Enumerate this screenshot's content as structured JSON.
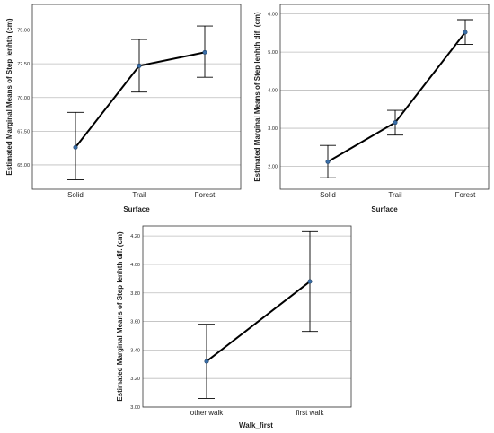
{
  "chart_data": [
    {
      "type": "line",
      "title": "",
      "xlabel": "Surface",
      "ylabel": "Estimated Marginal Means of Step lenhth (cm)",
      "categories": [
        "Solid",
        "Trail",
        "Forest"
      ],
      "yticks": [
        "65.00",
        "67.50",
        "70.00",
        "72.50",
        "75.00"
      ],
      "ylim": [
        63.2,
        76.9
      ],
      "grid": true,
      "series": [
        {
          "values": [
            66.3,
            72.35,
            73.35
          ],
          "error_low": [
            63.9,
            70.4,
            71.5
          ],
          "error_high": [
            68.9,
            74.3,
            75.3
          ]
        }
      ]
    },
    {
      "type": "line",
      "title": "",
      "xlabel": "Surface",
      "ylabel": "Estimated Marginal Means of Step lenhth dif. (cm)",
      "categories": [
        "Solid",
        "Trail",
        "Forest"
      ],
      "yticks": [
        "2.00",
        "3.00",
        "4.00",
        "5.00",
        "6.00"
      ],
      "ylim": [
        1.4,
        6.25
      ],
      "grid": true,
      "series": [
        {
          "values": [
            2.12,
            3.15,
            5.52
          ],
          "error_low": [
            1.7,
            2.82,
            5.2
          ],
          "error_high": [
            2.55,
            3.47,
            5.85
          ]
        }
      ]
    },
    {
      "type": "line",
      "title": "",
      "xlabel": "Walk_first",
      "ylabel": "Estimated Marginal Means of Step lenhth dif. (cm)",
      "categories": [
        "other walk",
        "first walk"
      ],
      "yticks": [
        "3.00",
        "3.20",
        "3.40",
        "3.60",
        "3.80",
        "4.00",
        "4.20"
      ],
      "ylim": [
        3.0,
        4.27
      ],
      "grid": true,
      "series": [
        {
          "values": [
            3.32,
            3.88
          ],
          "error_low": [
            3.06,
            3.53
          ],
          "error_high": [
            3.58,
            4.23
          ]
        }
      ]
    }
  ]
}
